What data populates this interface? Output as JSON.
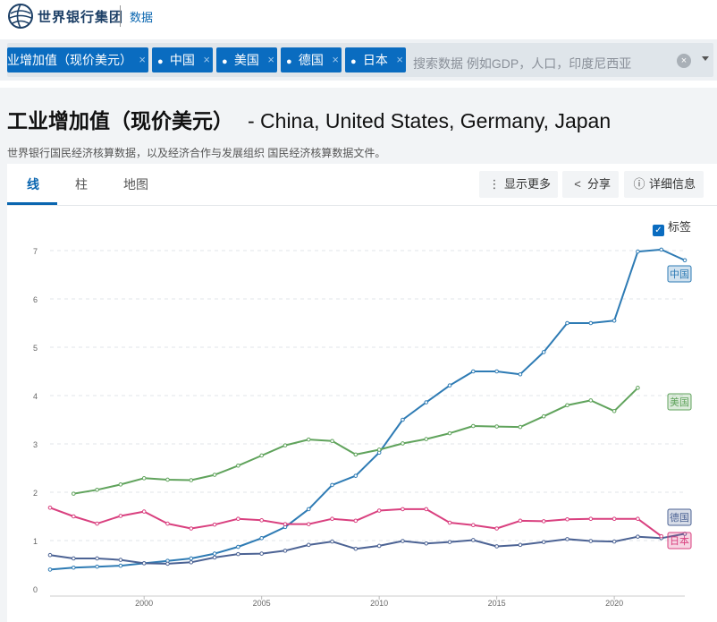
{
  "header": {
    "logo_text": "世界银行集团",
    "nav_data": "数据"
  },
  "filters": {
    "chips": [
      {
        "label": "业增加值（现价美元）",
        "pin": false
      },
      {
        "label": "中国",
        "pin": true
      },
      {
        "label": "美国",
        "pin": true
      },
      {
        "label": "德国",
        "pin": true
      },
      {
        "label": "日本",
        "pin": true
      }
    ],
    "search_placeholder": "搜索数据 例如GDP，人口，印度尼西亚",
    "clear_symbol": "×",
    "remove_symbol": "×"
  },
  "page": {
    "title": "工业增加值（现价美元）",
    "title_suffix": "- China, United States, Germany, Japan",
    "source": "世界银行国民经济核算数据，以及经济合作与发展组织 国民经济核算数据文件。"
  },
  "tabs": [
    {
      "label": "线",
      "active": true
    },
    {
      "label": "柱",
      "active": false
    },
    {
      "label": "地图",
      "active": false
    }
  ],
  "toolbar": {
    "more_label": "显示更多",
    "share_label": "分享",
    "details_label": "详细信息"
  },
  "label_toggle": {
    "label": "标签",
    "checked": true
  },
  "colors": {
    "primary": "#0a6cc0",
    "china": "#2e7bb4",
    "usa": "#60a35c",
    "germany": "#4c6394",
    "japan": "#d9407f"
  },
  "chart_data": {
    "type": "line",
    "title": "工业增加值（现价美元）",
    "xlim": [
      1996,
      2023
    ],
    "ylim": [
      0,
      7
    ],
    "yticks": [
      0,
      1,
      2,
      3,
      4,
      5,
      6,
      7
    ],
    "xticks": [
      2000,
      2005,
      2010,
      2015,
      2020
    ],
    "grid": true,
    "legend": "right, inline labels",
    "series": [
      {
        "name": "中国",
        "key": "china",
        "x": [
          1996,
          1997,
          1998,
          1999,
          2000,
          2001,
          2002,
          2003,
          2004,
          2005,
          2006,
          2007,
          2008,
          2009,
          2010,
          2011,
          2012,
          2013,
          2014,
          2015,
          2016,
          2017,
          2018,
          2019,
          2020,
          2021,
          2022,
          2023
        ],
        "values": [
          0.4,
          0.44,
          0.46,
          0.48,
          0.53,
          0.58,
          0.63,
          0.73,
          0.87,
          1.05,
          1.28,
          1.65,
          2.15,
          2.34,
          2.82,
          3.5,
          3.86,
          4.21,
          4.5,
          4.5,
          4.44,
          4.9,
          5.5,
          5.5,
          5.55,
          6.98,
          7.02,
          6.8
        ]
      },
      {
        "name": "美国",
        "key": "usa",
        "x": [
          1997,
          1998,
          1999,
          2000,
          2001,
          2002,
          2003,
          2004,
          2005,
          2006,
          2007,
          2008,
          2009,
          2010,
          2011,
          2012,
          2013,
          2014,
          2015,
          2016,
          2017,
          2018,
          2019,
          2020,
          2021
        ],
        "values": [
          1.97,
          2.05,
          2.16,
          2.29,
          2.26,
          2.25,
          2.36,
          2.55,
          2.76,
          2.97,
          3.09,
          3.06,
          2.78,
          2.88,
          3.01,
          3.1,
          3.22,
          3.37,
          3.36,
          3.35,
          3.57,
          3.8,
          3.9,
          3.68,
          4.16
        ]
      },
      {
        "name": "德国",
        "key": "germany",
        "x": [
          1996,
          1997,
          1998,
          1999,
          2000,
          2001,
          2002,
          2003,
          2004,
          2005,
          2006,
          2007,
          2008,
          2009,
          2010,
          2011,
          2012,
          2013,
          2014,
          2015,
          2016,
          2017,
          2018,
          2019,
          2020,
          2021,
          2022,
          2023
        ],
        "values": [
          0.7,
          0.63,
          0.63,
          0.6,
          0.53,
          0.52,
          0.55,
          0.65,
          0.72,
          0.73,
          0.79,
          0.91,
          0.98,
          0.83,
          0.89,
          0.99,
          0.94,
          0.97,
          1.01,
          0.88,
          0.91,
          0.97,
          1.03,
          0.99,
          0.98,
          1.08,
          1.05,
          1.14
        ]
      },
      {
        "name": "日本",
        "key": "japan",
        "x": [
          1996,
          1997,
          1998,
          1999,
          2000,
          2001,
          2002,
          2003,
          2004,
          2005,
          2006,
          2007,
          2008,
          2009,
          2010,
          2011,
          2012,
          2013,
          2014,
          2015,
          2016,
          2017,
          2018,
          2019,
          2020,
          2021,
          2022
        ],
        "values": [
          1.68,
          1.5,
          1.35,
          1.51,
          1.6,
          1.35,
          1.25,
          1.33,
          1.45,
          1.42,
          1.34,
          1.34,
          1.45,
          1.41,
          1.62,
          1.65,
          1.65,
          1.37,
          1.32,
          1.25,
          1.41,
          1.4,
          1.44,
          1.45,
          1.45,
          1.45,
          1.09
        ]
      }
    ]
  }
}
